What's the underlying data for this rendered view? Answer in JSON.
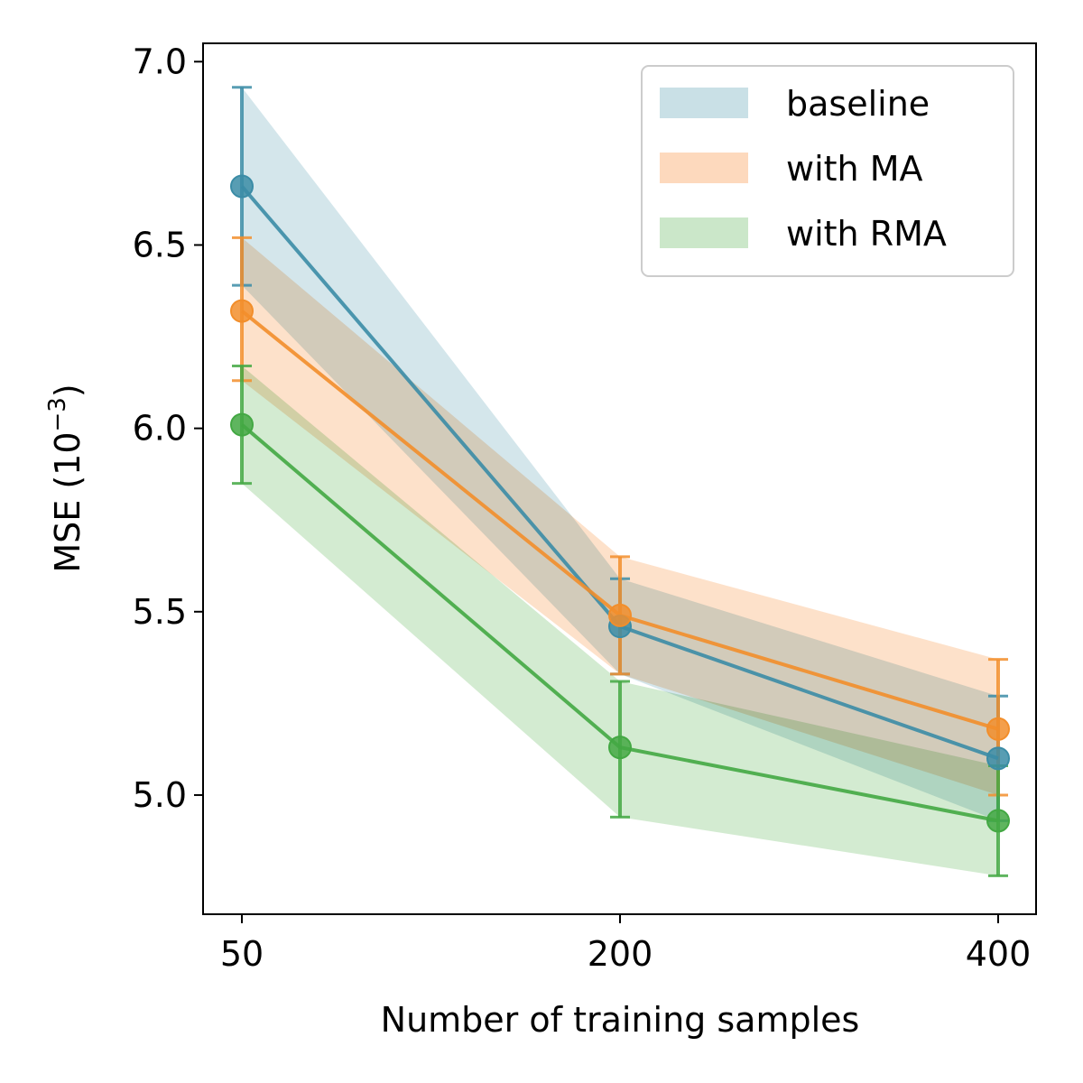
{
  "chart_data": {
    "type": "line",
    "title": "",
    "xlabel": "Number of training samples",
    "ylabel_base": "MSE (10",
    "ylabel_exp": "−3",
    "ylabel_close": ")",
    "categories": [
      "50",
      "200",
      "400"
    ],
    "x": [
      50,
      200,
      400
    ],
    "ylim": [
      4.675,
      7.05
    ],
    "yticks": [
      5.0,
      5.5,
      6.0,
      6.5,
      7.0
    ],
    "ytick_labels": [
      "5.0",
      "5.5",
      "6.0",
      "6.5",
      "7.0"
    ],
    "legend_position": "top-right",
    "grid": false,
    "series": [
      {
        "name": "baseline",
        "color": "#3b8ca6",
        "band_color": "#c9e0e6",
        "values": [
          6.66,
          5.46,
          5.1
        ],
        "err_low": [
          6.39,
          5.33,
          4.93
        ],
        "err_high": [
          6.93,
          5.59,
          5.27
        ],
        "band_low": [
          6.39,
          5.33,
          4.93
        ],
        "band_high": [
          6.93,
          5.59,
          5.27
        ]
      },
      {
        "name": "with MA",
        "color": "#f28e2b",
        "band_color": "#fdd9bd",
        "values": [
          6.32,
          5.49,
          5.18
        ],
        "err_low": [
          6.13,
          5.33,
          5.0
        ],
        "err_high": [
          6.52,
          5.65,
          5.37
        ],
        "band_low": [
          6.13,
          5.33,
          5.0
        ],
        "band_high": [
          6.52,
          5.65,
          5.37
        ]
      },
      {
        "name": "with RMA",
        "color": "#43a843",
        "band_color": "#cbe7c9",
        "values": [
          6.01,
          5.13,
          4.93
        ],
        "err_low": [
          5.85,
          4.94,
          4.78
        ],
        "err_high": [
          6.17,
          5.31,
          5.08
        ],
        "band_low": [
          5.85,
          4.94,
          4.78
        ],
        "band_high": [
          6.17,
          5.31,
          5.08
        ]
      }
    ]
  }
}
